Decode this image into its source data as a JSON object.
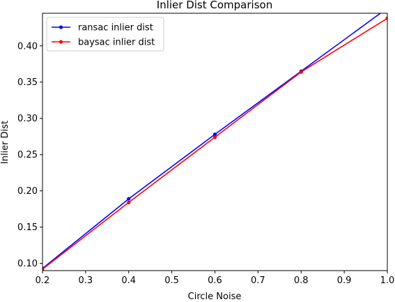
{
  "chart_data": {
    "type": "line",
    "title": "Inlier Dist Comparison",
    "xlabel": "Circle Noise",
    "ylabel": "Inlier Dist",
    "xlim": [
      0.2,
      1.0
    ],
    "ylim": [
      0.09,
      0.445
    ],
    "xticks": [
      0.2,
      0.3,
      0.4,
      0.5,
      0.6,
      0.7,
      0.8,
      0.9,
      1.0
    ],
    "xtick_labels": [
      "0.2",
      "0.3",
      "0.4",
      "0.5",
      "0.6",
      "0.7",
      "0.8",
      "0.9",
      "1.0"
    ],
    "yticks": [
      0.1,
      0.15,
      0.2,
      0.25,
      0.3,
      0.35,
      0.4
    ],
    "ytick_labels": [
      "0.10",
      "0.15",
      "0.20",
      "0.25",
      "0.30",
      "0.35",
      "0.40"
    ],
    "grid": false,
    "legend_position": "top-left",
    "x": [
      0.2,
      0.4,
      0.6,
      0.8,
      1.0
    ],
    "series": [
      {
        "name": "ransac inlier dist",
        "color": "#0000ff",
        "values": [
          0.093,
          0.189,
          0.278,
          0.365,
          0.452
        ]
      },
      {
        "name": "baysac inlier dist",
        "color": "#ff0000",
        "values": [
          0.092,
          0.184,
          0.274,
          0.364,
          0.438
        ]
      }
    ]
  }
}
